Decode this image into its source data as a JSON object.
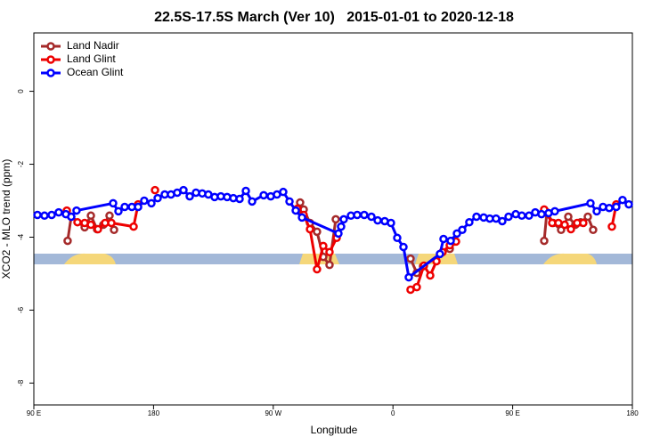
{
  "chart_data": {
    "type": "line",
    "title": "22.5S-17.5S March (Ver 10)   2015-01-01 to 2020-12-18",
    "xlabel": "Longitude",
    "ylabel": "XCO2 - MLO trend (ppm)",
    "xlim": [
      90,
      540
    ],
    "ylim": [
      -8.6,
      1.6
    ],
    "xticks": [
      {
        "value": 90,
        "label": "90 E"
      },
      180,
      {
        "value": 270,
        "label": "90 W"
      },
      {
        "value": 360,
        "label": "0"
      },
      {
        "value": 450,
        "label": "90 E"
      },
      {
        "value": 540,
        "label": "180"
      }
    ],
    "yticks": [
      0,
      -2,
      -4,
      -6,
      -8
    ],
    "legend": "top-left",
    "series": [
      {
        "name": "Land Nadir",
        "color": "#a52a2a",
        "x": [
          115.4,
          118.1,
          128.2,
          132.9,
          137.5,
          142.2,
          146.9,
          150.3,
          null,
          290.2,
          292.9,
          297.6,
          302.9,
          307.6,
          312.3,
          317.0,
          null,
          373.2,
          377.9,
          382.6,
          402.7,
          406.1,
          null,
          473.7,
          475.7,
          480.4,
          486.4,
          491.8,
          497.1,
          501.1,
          506.5,
          510.5
        ],
        "values": [
          -4.1,
          -3.44,
          -3.73,
          -3.41,
          -3.78,
          -3.66,
          -3.41,
          -3.8,
          null,
          -3.05,
          -3.24,
          -3.61,
          -3.85,
          -4.54,
          -4.76,
          -3.51,
          null,
          -4.59,
          -4.98,
          -4.8,
          -4.32,
          -4.12,
          null,
          -4.1,
          -3.32,
          -3.61,
          -3.8,
          -3.44,
          -3.66,
          -3.59,
          -3.44,
          -3.8
        ]
      },
      {
        "name": "Land Glint",
        "color": "#ee0000",
        "x": [
          114.8,
          122.8,
          128.2,
          132.9,
          138.2,
          143.6,
          148.3,
          165.0,
          168.4,
          null,
          181.1,
          null,
          288.2,
          292.9,
          297.6,
          302.9,
          307.6,
          312.3,
          317.7,
          null,
          373.2,
          377.9,
          383.3,
          388.0,
          392.7,
          397.3,
          402.7,
          407.4,
          null,
          473.7,
          479.7,
          484.4,
          489.1,
          493.8,
          498.5,
          503.1,
          null,
          524.6,
          527.9
        ],
        "values": [
          -3.27,
          -3.59,
          -3.61,
          -3.66,
          -3.78,
          -3.61,
          -3.61,
          -3.71,
          -3.1,
          null,
          -2.71,
          null,
          -3.22,
          -3.39,
          -3.78,
          -4.88,
          -4.24,
          -4.41,
          -4.02,
          null,
          -5.44,
          -5.37,
          -4.78,
          -5.05,
          -4.66,
          -4.41,
          -4.22,
          -4.12,
          null,
          -3.24,
          -3.61,
          -3.61,
          -3.66,
          -3.78,
          -3.61,
          -3.61,
          null,
          -3.71,
          -3.1
        ]
      },
      {
        "name": "Ocean Glint",
        "color": "#0000ff",
        "x": [
          92.7,
          98.0,
          103.4,
          108.7,
          114.1,
          118.1,
          122.1,
          149.6,
          153.6,
          158.3,
          163.7,
          168.4,
          173.0,
          178.4,
          183.1,
          188.4,
          193.1,
          197.8,
          202.5,
          207.2,
          211.9,
          216.6,
          221.2,
          225.9,
          230.6,
          235.3,
          240.0,
          244.7,
          249.4,
          254.1,
          262.8,
          268.1,
          272.8,
          277.5,
          282.2,
          286.9,
          291.6,
          319.0,
          321.0,
          323.0,
          328.4,
          333.1,
          338.4,
          343.8,
          348.5,
          353.8,
          358.5,
          363.2,
          367.9,
          371.9,
          395.3,
          398.0,
          403.4,
          408.1,
          412.1,
          417.4,
          422.8,
          428.2,
          432.8,
          437.5,
          442.2,
          446.9,
          452.3,
          456.9,
          462.3,
          467.0,
          471.7,
          477.0,
          481.7,
          508.5,
          513.2,
          517.9,
          522.6,
          527.9,
          532.6,
          537.3
        ],
        "values": [
          -3.39,
          -3.41,
          -3.39,
          -3.32,
          -3.37,
          -3.44,
          -3.27,
          -3.07,
          -3.29,
          -3.17,
          -3.17,
          -3.17,
          -3.0,
          -3.07,
          -2.93,
          -2.83,
          -2.83,
          -2.78,
          -2.71,
          -2.88,
          -2.78,
          -2.8,
          -2.83,
          -2.9,
          -2.88,
          -2.9,
          -2.93,
          -2.95,
          -2.73,
          -3.02,
          -2.85,
          -2.88,
          -2.83,
          -2.76,
          -3.02,
          -3.27,
          -3.46,
          -3.9,
          -3.71,
          -3.51,
          -3.41,
          -3.39,
          -3.39,
          -3.44,
          -3.54,
          -3.56,
          -3.61,
          -4.02,
          -4.27,
          -5.1,
          -4.46,
          -4.05,
          -4.1,
          -3.9,
          -3.8,
          -3.59,
          -3.44,
          -3.46,
          -3.49,
          -3.49,
          -3.56,
          -3.44,
          -3.37,
          -3.41,
          -3.41,
          -3.32,
          -3.37,
          -3.34,
          -3.29,
          -3.07,
          -3.29,
          -3.17,
          -3.2,
          -3.17,
          -2.98,
          -3.1
        ]
      }
    ]
  }
}
